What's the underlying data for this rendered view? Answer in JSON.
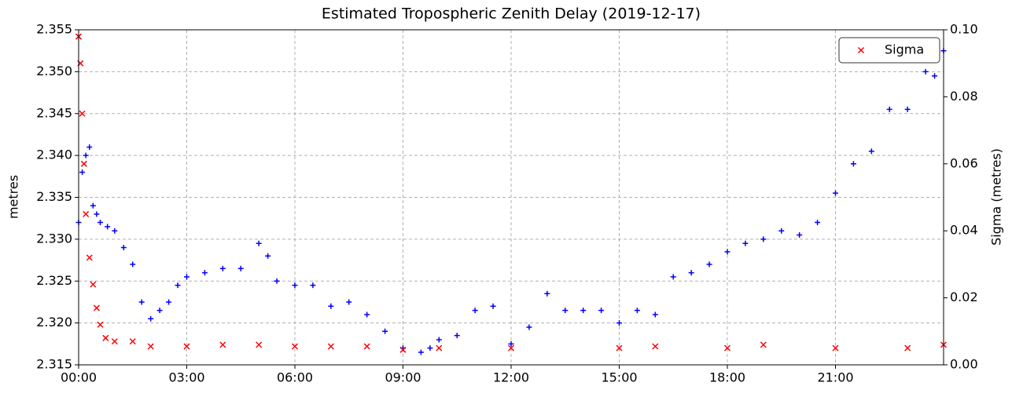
{
  "chart_data": {
    "type": "scatter",
    "title": "Estimated Tropospheric Zenith Delay (2019-12-17)",
    "ylabel": "metres",
    "y2label": "Sigma (metres)",
    "xlim": [
      0,
      24
    ],
    "xticks": [
      {
        "value": 0,
        "label": "00:00"
      },
      {
        "value": 3,
        "label": "03:00"
      },
      {
        "value": 6,
        "label": "06:00"
      },
      {
        "value": 9,
        "label": "09:00"
      },
      {
        "value": 12,
        "label": "12:00"
      },
      {
        "value": 15,
        "label": "15:00"
      },
      {
        "value": 18,
        "label": "18:00"
      },
      {
        "value": 21,
        "label": "21:00"
      }
    ],
    "ylim": [
      2.315,
      2.355
    ],
    "yticks": [
      2.315,
      {
        "value": 2.32,
        "label": "2.320"
      },
      2.325,
      {
        "value": 2.33,
        "label": "2.330"
      },
      2.335,
      {
        "value": 2.34,
        "label": "2.340"
      },
      2.345,
      {
        "value": 2.35,
        "label": "2.350"
      },
      2.355
    ],
    "y2lim": [
      0,
      0.1
    ],
    "y2ticks": [
      {
        "value": 0,
        "label": "0.00"
      },
      {
        "value": 0.02,
        "label": "0.02"
      },
      {
        "value": 0.04,
        "label": "0.04"
      },
      {
        "value": 0.06,
        "label": "0.06"
      },
      {
        "value": 0.08,
        "label": "0.08"
      },
      {
        "value": 0.1,
        "label": "0.10"
      }
    ],
    "grid": true,
    "legend": "upper right",
    "series": [
      {
        "color": "#0000ff",
        "marker": "+",
        "x": [
          0,
          0.1,
          0.2,
          0.3,
          0.4,
          0.5,
          0.6,
          0.8,
          1,
          1.25,
          1.5,
          1.75,
          2,
          2.25,
          2.5,
          2.75,
          3,
          3.5,
          4,
          4.5,
          5,
          5.25,
          5.5,
          6,
          6.5,
          7,
          7.5,
          8,
          8.5,
          9,
          9.5,
          9.75,
          10,
          10.5,
          11,
          11.5,
          12,
          12.5,
          13,
          13.5,
          14,
          14.5,
          15,
          15.5,
          16,
          16.5,
          17,
          17.5,
          18,
          18.5,
          19,
          19.5,
          20,
          20.5,
          21,
          21.5,
          22,
          22.5,
          23,
          23.5,
          23.75,
          24
        ],
        "values": [
          2.332,
          2.338,
          2.34,
          2.341,
          2.334,
          2.333,
          2.332,
          2.3315,
          2.331,
          2.329,
          2.327,
          2.3225,
          2.3205,
          2.3215,
          2.3225,
          2.3245,
          2.3255,
          2.326,
          2.3265,
          2.3265,
          2.3295,
          2.328,
          2.325,
          2.3245,
          2.3245,
          2.322,
          2.3225,
          2.321,
          2.319,
          2.317,
          2.3165,
          2.317,
          2.318,
          2.3185,
          2.3215,
          2.322,
          2.3175,
          2.3195,
          2.3235,
          2.3215,
          2.3215,
          2.3215,
          2.32,
          2.3215,
          2.321,
          2.3255,
          2.326,
          2.327,
          2.3285,
          2.3295,
          2.33,
          2.331,
          2.3305,
          2.332,
          2.3355,
          2.339,
          2.3405,
          2.3455,
          2.3455,
          2.35,
          2.3495,
          2.3525
        ]
      },
      {
        "name": "Sigma",
        "color": "#ff0000",
        "marker": "x",
        "axis": "y2",
        "x": [
          0,
          0.05,
          0.1,
          0.15,
          0.2,
          0.3,
          0.4,
          0.5,
          0.6,
          0.75,
          1,
          1.5,
          2,
          3,
          4,
          5,
          6,
          7,
          8,
          9,
          10,
          12,
          15,
          16,
          18,
          19,
          21,
          23,
          24
        ],
        "values": [
          0.098,
          0.09,
          0.075,
          0.06,
          0.045,
          0.032,
          0.024,
          0.017,
          0.012,
          0.008,
          0.007,
          0.007,
          0.0055,
          0.0055,
          0.006,
          0.006,
          0.0055,
          0.0055,
          0.0055,
          0.0045,
          0.005,
          0.005,
          0.005,
          0.0055,
          0.005,
          0.006,
          0.005,
          0.005,
          0.006
        ]
      }
    ]
  }
}
